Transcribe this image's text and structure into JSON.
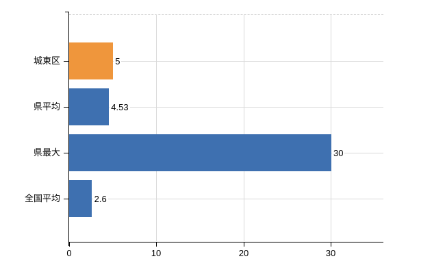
{
  "chart_data": {
    "type": "bar",
    "orientation": "horizontal",
    "title": "",
    "categories": [
      "城東区",
      "県平均",
      "県最大",
      "全国平均"
    ],
    "values": [
      5,
      4.53,
      30,
      2.6
    ],
    "value_labels": [
      "5",
      "4.53",
      "30",
      "2.6"
    ],
    "bar_colors": [
      "#ef963c",
      "#3e70b0",
      "#3e70b0",
      "#3e70b0"
    ],
    "xlabel": "",
    "ylabel": "",
    "xlim": [
      0,
      36
    ],
    "xticks": [
      0,
      10,
      20,
      30
    ],
    "xtick_labels": [
      "0",
      "10",
      "20",
      "30"
    ],
    "grid": true,
    "legend": false,
    "colors": {
      "bar_blue": "#3e70b0",
      "bar_orange": "#ef963c",
      "axis": "#000000",
      "gridline": "#d9d9d9",
      "plot_top_border": "#c9c9c9",
      "text": "#000000",
      "background": "#ffffff"
    }
  }
}
